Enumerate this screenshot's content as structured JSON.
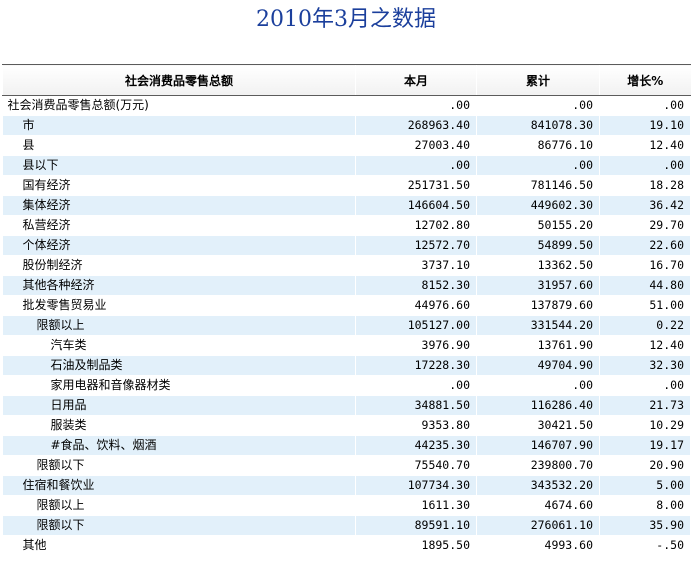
{
  "title": "2010年3月之数据",
  "table": {
    "headers": [
      "社会消费品零售总额",
      "本月",
      "累计",
      "增长%"
    ],
    "rows": [
      {
        "name": "社会消费品零售总额(万元)",
        "month": ".00",
        "cumulative": ".00",
        "growth": ".00"
      },
      {
        "name": "市",
        "month": "268963.40",
        "cumulative": "841078.30",
        "growth": "19.10"
      },
      {
        "name": "县",
        "month": "27003.40",
        "cumulative": "86776.10",
        "growth": "12.40"
      },
      {
        "name": "县以下",
        "month": ".00",
        "cumulative": ".00",
        "growth": ".00"
      },
      {
        "name": "国有经济",
        "month": "251731.50",
        "cumulative": "781146.50",
        "growth": "18.28"
      },
      {
        "name": "集体经济",
        "month": "146604.50",
        "cumulative": "449602.30",
        "growth": "36.42"
      },
      {
        "name": "私营经济",
        "month": "12702.80",
        "cumulative": "50155.20",
        "growth": "29.70"
      },
      {
        "name": "个体经济",
        "month": "12572.70",
        "cumulative": "54899.50",
        "growth": "22.60"
      },
      {
        "name": "股份制经济",
        "month": "3737.10",
        "cumulative": "13362.50",
        "growth": "16.70"
      },
      {
        "name": "其他各种经济",
        "month": "8152.30",
        "cumulative": "31957.60",
        "growth": "44.80"
      },
      {
        "name": "批发零售贸易业",
        "month": "44976.60",
        "cumulative": "137879.60",
        "growth": "51.00"
      },
      {
        "name": "限额以上",
        "month": "105127.00",
        "cumulative": "331544.20",
        "growth": "0.22"
      },
      {
        "name": "汽车类",
        "month": "3976.90",
        "cumulative": "13761.90",
        "growth": "12.40"
      },
      {
        "name": "石油及制品类",
        "month": "17228.30",
        "cumulative": "49704.90",
        "growth": "32.30"
      },
      {
        "name": "家用电器和音像器材类",
        "month": ".00",
        "cumulative": ".00",
        "growth": ".00"
      },
      {
        "name": "日用品",
        "month": "34881.50",
        "cumulative": "116286.40",
        "growth": "21.73"
      },
      {
        "name": "服装类",
        "month": "9353.80",
        "cumulative": "30421.50",
        "growth": "10.29"
      },
      {
        "name": "#食品、饮料、烟酒",
        "month": "44235.30",
        "cumulative": "146707.90",
        "growth": "19.17"
      },
      {
        "name": "限额以下",
        "month": "75540.70",
        "cumulative": "239800.70",
        "growth": "20.90"
      },
      {
        "name": "住宿和餐饮业",
        "month": "107734.30",
        "cumulative": "343532.20",
        "growth": "5.00"
      },
      {
        "name": "限额以上",
        "month": "1611.30",
        "cumulative": "4674.60",
        "growth": "8.00"
      },
      {
        "name": "限额以下",
        "month": "89591.10",
        "cumulative": "276061.10",
        "growth": "35.90"
      },
      {
        "name": "其他",
        "month": "1895.50",
        "cumulative": "4993.60",
        "growth": "-.50"
      }
    ]
  }
}
